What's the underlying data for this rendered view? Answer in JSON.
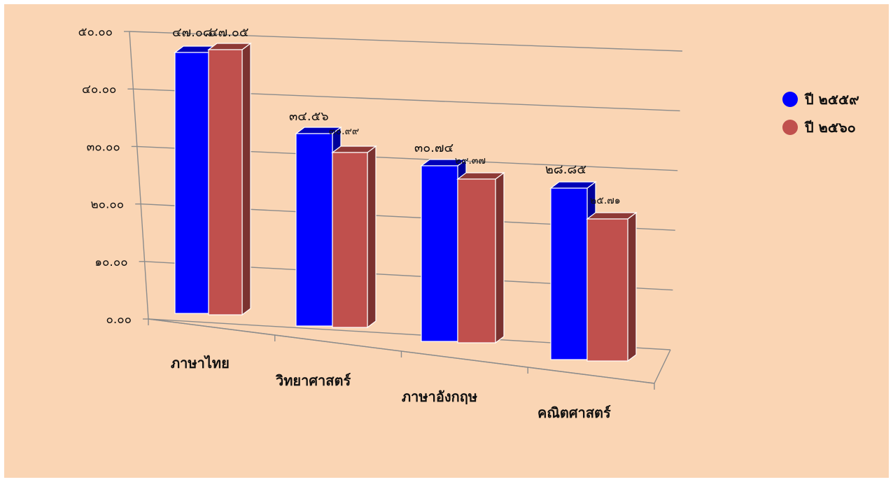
{
  "chart_data": {
    "type": "bar",
    "categories": [
      "ภาษาไทย",
      "วิทยาศาสตร์",
      "ภาษาอังกฤษ",
      "คณิตศาสตร์"
    ],
    "series": [
      {
        "name": "ปี ๒๕๕๙",
        "values": [
          47.08,
          34.56,
          30.74,
          28.85
        ],
        "labels": [
          "๔๗.๐๘",
          "๓๔.๕๖",
          "๓๐.๗๔",
          "๒๘.๘๕"
        ],
        "color": "#0000ff"
      },
      {
        "name": "ปี ๒๕๖๐",
        "values": [
          47.05,
          30.99,
          29.37,
          25.71
        ],
        "labels": [
          "๔๗.๐๕",
          "๓๐.๙๙",
          "๒๙.๓๗",
          "๒๕.๗๑"
        ],
        "color": "#c0504d"
      }
    ],
    "y_tick_labels": [
      "๐.๐๐",
      "๑๐.๐๐",
      "๒๐.๐๐",
      "๓๐.๐๐",
      "๔๐.๐๐",
      "๕๐.๐๐"
    ],
    "ylim": [
      0,
      50
    ],
    "grid": true,
    "legend_position": "right",
    "style": "3d-clustered-column"
  }
}
